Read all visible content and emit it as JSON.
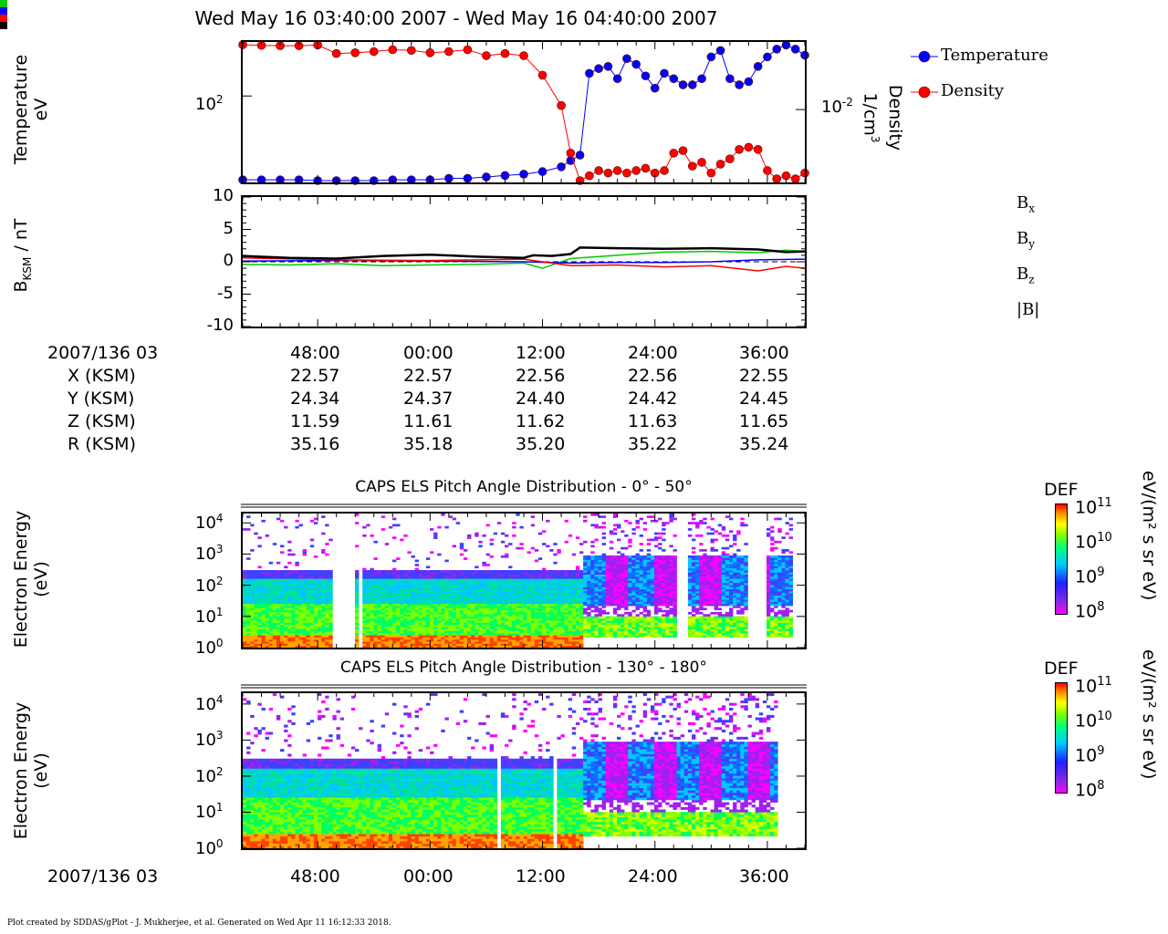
{
  "title": "Wed May 16 03:40:00 2007 - Wed May 16 04:40:00 2007",
  "footer": "Plot created by SDDAS/gPlot - J. Mukherjee, et al.  Generated on Wed Apr 11 16:12:33 2018.",
  "time_ticks": [
    "48:00",
    "00:00",
    "12:00",
    "24:00",
    "36:00"
  ],
  "ephemeris": {
    "header": "2007/136 03",
    "rows": [
      {
        "label": "X (KSM)",
        "values": [
          "22.57",
          "22.57",
          "22.56",
          "22.56",
          "22.55"
        ]
      },
      {
        "label": "Y (KSM)",
        "values": [
          "24.34",
          "24.37",
          "24.40",
          "24.42",
          "24.45"
        ]
      },
      {
        "label": "Z (KSM)",
        "values": [
          "11.59",
          "11.61",
          "11.62",
          "11.63",
          "11.65"
        ]
      },
      {
        "label": "R (KSM)",
        "values": [
          "35.16",
          "35.18",
          "35.20",
          "35.22",
          "35.24"
        ]
      }
    ]
  },
  "bottom_date": "2007/136 03",
  "panel1": {
    "ylabel_line1": "Temperature",
    "ylabel_line2": "eV",
    "ytick": "10",
    "ytick_exp": "2",
    "y2label_line1": "Density",
    "y2label_line2": "1/cm",
    "y2label_exp": "3",
    "y2tick": "10",
    "y2tick_exp": "-2",
    "legend": [
      {
        "name": "Temperature",
        "color": "#0000ff"
      },
      {
        "name": "Density",
        "color": "#ff0000"
      }
    ]
  },
  "panel2": {
    "ylabel_main": "B",
    "ylabel_sub": "KSM",
    "ylabel_rest": " / nT",
    "yticks": [
      "10",
      "5",
      "0",
      "-5",
      "-10"
    ],
    "legend": [
      {
        "main": "B",
        "sub": "x",
        "color": "#00cc00"
      },
      {
        "main": "B",
        "sub": "y",
        "color": "#0000ff"
      },
      {
        "main": "B",
        "sub": "z",
        "color": "#ff0000"
      },
      {
        "main": "|B|",
        "sub": "",
        "color": "#000000"
      }
    ]
  },
  "panel3": {
    "title": "CAPS ELS Pitch Angle Distribution - 0° - 50°",
    "ylabel_line1": "Electron Energy",
    "ylabel_line2": "(eV)"
  },
  "panel4": {
    "title": "CAPS ELS Pitch Angle Distribution - 130° - 180°",
    "ylabel_line1": "Electron Energy",
    "ylabel_line2": "(eV)"
  },
  "energy_ticks": [
    {
      "base": "10",
      "exp": "4"
    },
    {
      "base": "10",
      "exp": "3"
    },
    {
      "base": "10",
      "exp": "2"
    },
    {
      "base": "10",
      "exp": "1"
    },
    {
      "base": "10",
      "exp": "0"
    }
  ],
  "colorbar": {
    "title": "DEF",
    "unit": "eV/(m² s sr eV)",
    "ticks": [
      {
        "base": "10",
        "exp": "11"
      },
      {
        "base": "10",
        "exp": "10"
      },
      {
        "base": "10",
        "exp": "9"
      },
      {
        "base": "10",
        "exp": "8"
      }
    ]
  },
  "chart_data": [
    {
      "type": "scatter",
      "panel": "plasma moments",
      "x_unit": "minutes after 03:40",
      "x_range": [
        0,
        60
      ],
      "y_log": true,
      "series": [
        {
          "name": "Temperature",
          "color": "#0000ff",
          "x": [
            0,
            2,
            4,
            6,
            8,
            10,
            12,
            14,
            16,
            18,
            20,
            22,
            24,
            26,
            28,
            30,
            32,
            34,
            35,
            36,
            37,
            38,
            39,
            40,
            41,
            42,
            43,
            44,
            45,
            46,
            47,
            48,
            49,
            50,
            51,
            52,
            53,
            54,
            55,
            56,
            57,
            58,
            59,
            60
          ],
          "y": [
            14,
            14,
            14,
            14,
            13.5,
            13.5,
            13.5,
            13.5,
            14,
            14,
            14,
            14.5,
            14.5,
            15,
            15.5,
            16,
            17,
            19,
            22,
            25,
            170,
            190,
            200,
            150,
            240,
            210,
            160,
            120,
            170,
            150,
            130,
            130,
            150,
            250,
            290,
            150,
            130,
            140,
            200,
            250,
            300,
            330,
            300,
            260
          ]
        },
        {
          "name": "Density",
          "color": "#ff0000",
          "x": [
            0,
            2,
            4,
            6,
            8,
            10,
            12,
            14,
            16,
            18,
            20,
            22,
            24,
            26,
            28,
            30,
            32,
            34,
            35,
            36,
            37,
            38,
            39,
            40,
            41,
            42,
            43,
            44,
            45,
            46,
            47,
            48,
            49,
            50,
            51,
            52,
            53,
            54,
            55,
            56,
            57,
            58,
            59,
            60
          ],
          "y": [
            0.095,
            0.093,
            0.092,
            0.092,
            0.094,
            0.07,
            0.072,
            0.075,
            0.08,
            0.078,
            0.072,
            0.075,
            0.08,
            0.065,
            0.07,
            0.065,
            0.033,
            0.0115,
            0.0022,
            0.0008,
            0.001,
            0.0012,
            0.0011,
            0.0012,
            0.0011,
            0.0012,
            0.0013,
            0.0011,
            0.0012,
            0.0022,
            0.0024,
            0.0014,
            0.0016,
            0.0011,
            0.0015,
            0.0018,
            0.0025,
            0.0027,
            0.0025,
            0.0012,
            0.0009,
            0.001,
            0.0009,
            0.0011
          ]
        }
      ]
    },
    {
      "type": "line",
      "panel": "magnetic field",
      "x_unit": "minutes after 03:40",
      "x_range": [
        0,
        60
      ],
      "ylabel": "B_KSM / nT",
      "ylim": [
        -10,
        10
      ],
      "series": [
        {
          "name": "Bx",
          "color": "#00cc00",
          "x": [
            0,
            5,
            10,
            15,
            20,
            25,
            30,
            31,
            32,
            35,
            40,
            45,
            50,
            55,
            58,
            60
          ],
          "y": [
            -0.4,
            -0.5,
            -0.3,
            -0.6,
            -0.5,
            -0.4,
            -0.2,
            -0.6,
            -1.0,
            0.5,
            1.0,
            1.5,
            1.6,
            1.4,
            1.8,
            1.6
          ]
        },
        {
          "name": "By",
          "color": "#0000ff",
          "x": [
            0,
            10,
            20,
            30,
            35,
            40,
            45,
            50,
            55,
            60
          ],
          "y": [
            0.1,
            0.2,
            0.1,
            0.0,
            -0.2,
            -0.1,
            -0.1,
            0.0,
            0.3,
            0.4
          ]
        },
        {
          "name": "Bz",
          "color": "#ff0000",
          "x": [
            0,
            10,
            20,
            30,
            35,
            40,
            45,
            50,
            55,
            58,
            60
          ],
          "y": [
            0.6,
            0.3,
            0.2,
            0.4,
            -0.6,
            -0.5,
            -0.8,
            -0.6,
            -1.4,
            -0.7,
            -1.0
          ]
        },
        {
          "name": "|B|",
          "color": "#000000",
          "x": [
            0,
            5,
            10,
            15,
            20,
            25,
            30,
            31,
            33,
            35,
            36,
            40,
            45,
            50,
            55,
            58,
            60
          ],
          "y": [
            0.9,
            0.6,
            0.5,
            0.9,
            1.1,
            0.8,
            0.6,
            1.0,
            0.9,
            1.2,
            2.2,
            2.1,
            2.0,
            2.1,
            1.9,
            1.5,
            1.6
          ]
        }
      ]
    },
    {
      "type": "heatmap",
      "panel": "CAPS ELS Pitch Angle Distribution - 0° - 50°",
      "x_range": [
        0,
        60
      ],
      "y_log": true,
      "y_range_eV": [
        1,
        20000
      ],
      "z_range": [
        100000000.0,
        100000000000.0
      ],
      "color_scale": "DEF"
    },
    {
      "type": "heatmap",
      "panel": "CAPS ELS Pitch Angle Distribution - 130° - 180°",
      "x_range": [
        0,
        60
      ],
      "y_log": true,
      "y_range_eV": [
        1,
        20000
      ],
      "z_range": [
        100000000.0,
        100000000000.0
      ],
      "color_scale": "DEF"
    }
  ]
}
